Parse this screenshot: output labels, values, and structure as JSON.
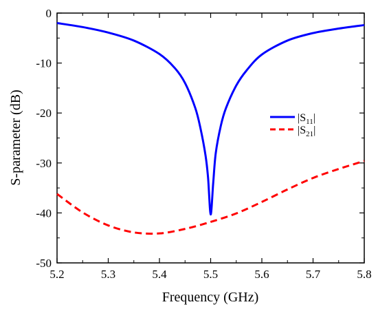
{
  "chart_data": {
    "type": "line",
    "title": "",
    "xlabel": "Frequency (GHz)",
    "ylabel": "S-parameter (dB)",
    "xlim": [
      5.2,
      5.8
    ],
    "ylim": [
      -50,
      0
    ],
    "xticks": [
      5.2,
      5.3,
      5.4,
      5.5,
      5.6,
      5.7,
      5.8
    ],
    "xtick_labels": [
      "5.2",
      "5.3",
      "5.4",
      "5.5",
      "5.6",
      "5.7",
      "5.8"
    ],
    "yticks": [
      0,
      -10,
      -20,
      -30,
      -40,
      -50
    ],
    "ytick_labels": [
      "0",
      "-10",
      "-20",
      "-30",
      "-40",
      "-50"
    ],
    "grid": false,
    "legend_position": "right",
    "series": [
      {
        "name": "|S11|",
        "name_main": "|S",
        "name_sub": "11",
        "name_end": "|",
        "color": "#0000ff",
        "dash": "solid",
        "x": [
          5.2,
          5.25,
          5.3,
          5.35,
          5.4,
          5.43,
          5.45,
          5.47,
          5.48,
          5.49,
          5.495,
          5.5,
          5.505,
          5.51,
          5.52,
          5.53,
          5.55,
          5.57,
          5.6,
          5.65,
          5.7,
          5.75,
          5.8
        ],
        "y": [
          -2.0,
          -2.8,
          -3.9,
          -5.5,
          -8.2,
          -11.0,
          -14.0,
          -19.0,
          -23.0,
          -28.5,
          -33.0,
          -40.3,
          -34.0,
          -28.0,
          -22.5,
          -19.0,
          -14.5,
          -11.5,
          -8.3,
          -5.5,
          -4.0,
          -3.1,
          -2.4
        ]
      },
      {
        "name": "|S21|",
        "name_main": "|S",
        "name_sub": "21",
        "name_end": "|",
        "color": "#ff0000",
        "dash": "dashed",
        "x": [
          5.2,
          5.25,
          5.3,
          5.35,
          5.4,
          5.45,
          5.5,
          5.55,
          5.6,
          5.65,
          5.7,
          5.75,
          5.8
        ],
        "y": [
          -36.2,
          -39.9,
          -42.5,
          -43.9,
          -44.1,
          -43.2,
          -41.8,
          -40.1,
          -37.8,
          -35.3,
          -33.0,
          -31.2,
          -29.6
        ]
      }
    ]
  }
}
